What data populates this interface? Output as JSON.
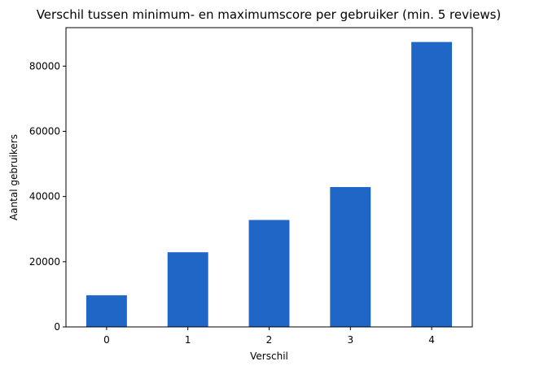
{
  "chart_data": {
    "type": "bar",
    "title": "Verschil tussen minimum- en maximumscore per gebruiker (min. 5 reviews)",
    "xlabel": "Verschil",
    "ylabel": "Aantal gebruikers",
    "categories": [
      "0",
      "1",
      "2",
      "3",
      "4"
    ],
    "values": [
      9700,
      22900,
      32800,
      42900,
      87400
    ],
    "ylim": [
      0,
      91800
    ],
    "yticks": [
      0,
      20000,
      40000,
      60000,
      80000
    ],
    "yticklabels": [
      "0",
      "20000",
      "40000",
      "60000",
      "80000"
    ],
    "bar_color": "#1f66c7",
    "grid": false,
    "legend": "none"
  }
}
